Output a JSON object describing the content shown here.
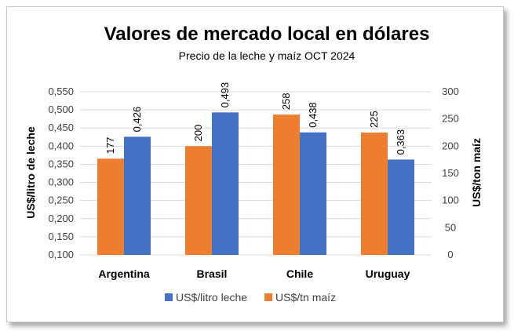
{
  "chart_data": {
    "type": "bar",
    "title": "Valores de mercado local en dólares",
    "subtitle": "Precio de la leche y maíz OCT 2024",
    "categories": [
      "Argentina",
      "Brasil",
      "Chile",
      "Uruguay"
    ],
    "series": [
      {
        "name": "US$/tn maíz",
        "axis": "right",
        "color": "#ED7D31",
        "values": [
          177,
          200,
          258,
          225
        ],
        "labels": [
          "177",
          "200",
          "258",
          "225"
        ]
      },
      {
        "name": "US$/litro leche",
        "axis": "left",
        "color": "#4472C4",
        "values": [
          0.426,
          0.493,
          0.438,
          0.363
        ],
        "labels": [
          "0,426",
          "0,493",
          "0,438",
          "0,363"
        ]
      }
    ],
    "ylabel": "US$/litro de leche",
    "ylabel_right": "US$/ton maíz",
    "ylim": [
      0.1,
      0.55
    ],
    "ylim_right": [
      0,
      300
    ],
    "yticks": [
      "0,100",
      "0,150",
      "0,200",
      "0,250",
      "0,300",
      "0,350",
      "0,400",
      "0,450",
      "0,500",
      "0,550"
    ],
    "yticks_right": [
      "0",
      "50",
      "100",
      "150",
      "200",
      "250",
      "300"
    ],
    "legend": {
      "position": "bottom",
      "entries": [
        "US$/litro leche",
        "US$/tn maíz"
      ]
    },
    "grid": true
  }
}
